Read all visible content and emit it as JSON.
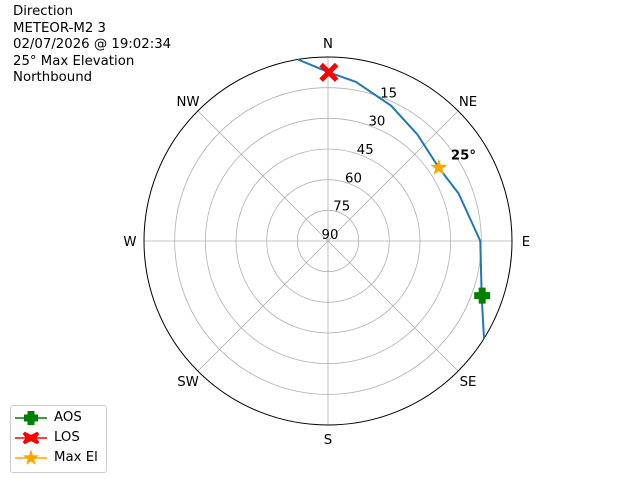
{
  "title_lines": [
    "Direction",
    "METEOR-M2 3",
    "02/07/2026 @ 19:02:34",
    "25° Max Elevation",
    "Northbound"
  ],
  "chart_data": {
    "type": "polar-line",
    "theta_direction": "clockwise",
    "theta_zero": "N",
    "direction_labels": [
      "N",
      "NE",
      "E",
      "SE",
      "S",
      "SW",
      "W",
      "NW"
    ],
    "radial_axis": "elevation (degrees), 90 at center, 0 at rim",
    "radial_ticks": [
      90,
      75,
      60,
      45,
      30,
      15
    ],
    "rlim": [
      90,
      0
    ],
    "grid": true,
    "track": {
      "color": "#1f77b4",
      "points": [
        [
          122,
          0
        ],
        [
          110,
          10
        ],
        [
          90,
          15.5
        ],
        [
          70,
          22
        ],
        [
          56.5,
          25
        ],
        [
          40,
          22
        ],
        [
          25,
          17
        ],
        [
          10,
          11
        ],
        [
          0.3,
          7.5
        ],
        [
          -9.4,
          0
        ]
      ]
    },
    "markers": [
      {
        "name": "AOS",
        "az": 109.5,
        "el": 10,
        "color": "#008000",
        "shape": "plus"
      },
      {
        "name": "LOS",
        "az": 0.3,
        "el": 7.5,
        "color": "#ff0000",
        "shape": "x"
      },
      {
        "name": "Max El",
        "az": 56.5,
        "el": 25,
        "color": "#ffa500",
        "shape": "star"
      }
    ],
    "annotation": {
      "text": "25°",
      "az": 56.5,
      "el": 25
    },
    "legend": {
      "placement": "bottom-left",
      "entries": [
        "AOS",
        "LOS",
        "Max El"
      ]
    }
  }
}
